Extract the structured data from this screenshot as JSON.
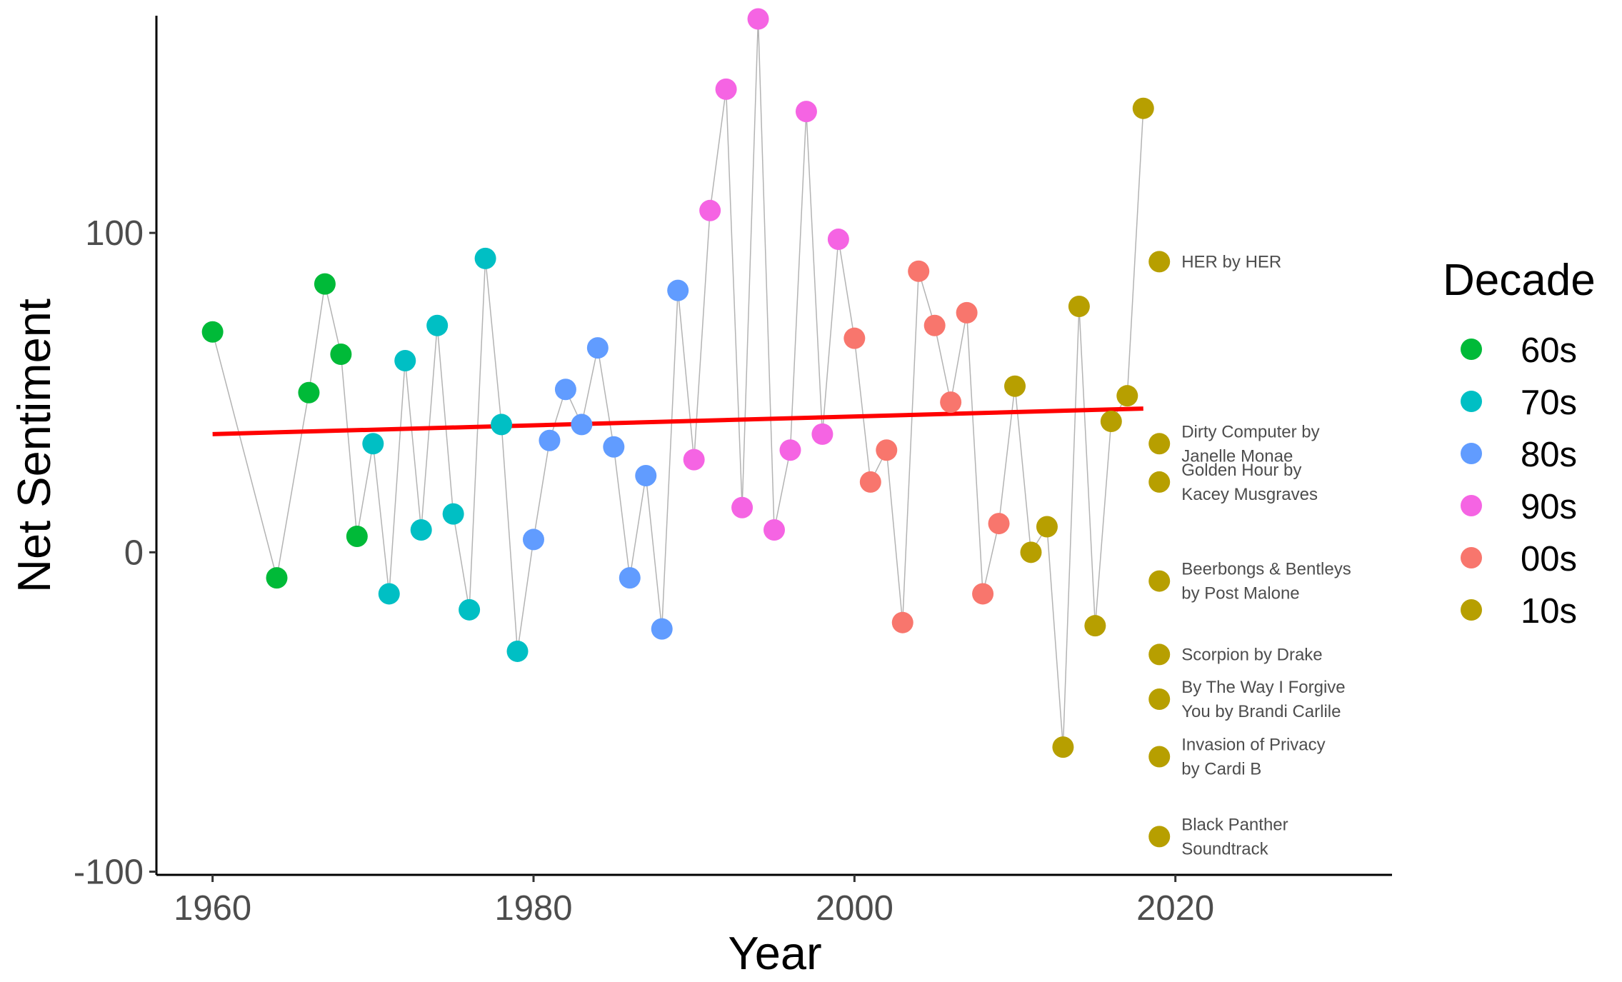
{
  "chart_data": {
    "type": "scatter",
    "title": "",
    "xlabel": "Year",
    "ylabel": "Net Sentiment",
    "xlim": [
      1956.5,
      2033.5
    ],
    "ylim": [
      -101,
      168
    ],
    "x_ticks": [
      1960,
      1980,
      2000,
      2020
    ],
    "x_tick_labels": [
      "1960",
      "1980",
      "2000",
      "2020"
    ],
    "y_ticks": [
      -100,
      0,
      100
    ],
    "y_tick_labels": [
      "-100",
      "0",
      "100"
    ],
    "grid": false,
    "legend": {
      "title": "Decade",
      "position": "right",
      "entries": [
        {
          "name": "60s",
          "color": "#00BA38"
        },
        {
          "name": "70s",
          "color": "#00BFC4"
        },
        {
          "name": "80s",
          "color": "#619CFF"
        },
        {
          "name": "90s",
          "color": "#F564E3"
        },
        {
          "name": "00s",
          "color": "#F8766D"
        },
        {
          "name": "10s",
          "color": "#B79F00"
        }
      ]
    },
    "connector_color": "#b3b3b3",
    "series": [
      {
        "name": "60s",
        "color": "#00BA38",
        "points": [
          [
            1960,
            69
          ],
          [
            1964,
            -8
          ],
          [
            1966,
            50
          ],
          [
            1967,
            84
          ],
          [
            1968,
            62
          ],
          [
            1969,
            5
          ]
        ]
      },
      {
        "name": "70s",
        "color": "#00BFC4",
        "points": [
          [
            1970,
            34
          ],
          [
            1971,
            -13
          ],
          [
            1972,
            60
          ],
          [
            1973,
            7
          ],
          [
            1974,
            71
          ],
          [
            1975,
            12
          ],
          [
            1976,
            -18
          ],
          [
            1977,
            92
          ],
          [
            1978,
            40
          ],
          [
            1979,
            -31
          ]
        ]
      },
      {
        "name": "80s",
        "color": "#619CFF",
        "points": [
          [
            1980,
            4
          ],
          [
            1981,
            35
          ],
          [
            1982,
            51
          ],
          [
            1983,
            40
          ],
          [
            1984,
            64
          ],
          [
            1985,
            33
          ],
          [
            1986,
            -8
          ],
          [
            1987,
            24
          ],
          [
            1988,
            -24
          ],
          [
            1989,
            82
          ]
        ]
      },
      {
        "name": "90s",
        "color": "#F564E3",
        "points": [
          [
            1990,
            29
          ],
          [
            1991,
            107
          ],
          [
            1992,
            145
          ],
          [
            1993,
            14
          ],
          [
            1994,
            167
          ],
          [
            1995,
            7
          ],
          [
            1996,
            32
          ],
          [
            1997,
            138
          ],
          [
            1998,
            37
          ],
          [
            1999,
            98
          ]
        ]
      },
      {
        "name": "00s",
        "color": "#F8766D",
        "points": [
          [
            2000,
            67
          ],
          [
            2001,
            22
          ],
          [
            2002,
            32
          ],
          [
            2003,
            -22
          ],
          [
            2004,
            88
          ],
          [
            2005,
            71
          ],
          [
            2006,
            47
          ],
          [
            2007,
            75
          ],
          [
            2008,
            -13
          ],
          [
            2009,
            9
          ]
        ]
      },
      {
        "name": "10s",
        "color": "#B79F00",
        "points": [
          [
            2010,
            52
          ],
          [
            2011,
            0
          ],
          [
            2012,
            8
          ],
          [
            2013,
            -61
          ],
          [
            2014,
            77
          ],
          [
            2015,
            -23
          ],
          [
            2016,
            41
          ],
          [
            2017,
            49
          ],
          [
            2018,
            139
          ]
        ]
      }
    ],
    "trend_line": {
      "color": "#FF0000",
      "from": [
        1960,
        37
      ],
      "to": [
        2018,
        45
      ]
    },
    "annotated_points": [
      {
        "x": 2019,
        "y": 91,
        "color": "#B79F00",
        "label_lines": [
          "HER by HER"
        ]
      },
      {
        "x": 2019,
        "y": 34,
        "color": "#B79F00",
        "label_lines": [
          "Dirty Computer by",
          "Janelle Monae"
        ]
      },
      {
        "x": 2019,
        "y": 22,
        "color": "#B79F00",
        "label_lines": [
          "Golden Hour by",
          "Kacey Musgraves"
        ]
      },
      {
        "x": 2019,
        "y": -9,
        "color": "#B79F00",
        "label_lines": [
          "Beerbongs & Bentleys",
          "by Post Malone"
        ]
      },
      {
        "x": 2019,
        "y": -32,
        "color": "#B79F00",
        "label_lines": [
          "Scorpion by Drake"
        ]
      },
      {
        "x": 2019,
        "y": -46,
        "color": "#B79F00",
        "label_lines": [
          "By The Way I Forgive",
          "You by Brandi Carlile"
        ]
      },
      {
        "x": 2019,
        "y": -64,
        "color": "#B79F00",
        "label_lines": [
          "Invasion of Privacy",
          "by Cardi B"
        ]
      },
      {
        "x": 2019,
        "y": -89,
        "color": "#B79F00",
        "label_lines": [
          "Black Panther",
          "Soundtrack"
        ]
      }
    ]
  }
}
